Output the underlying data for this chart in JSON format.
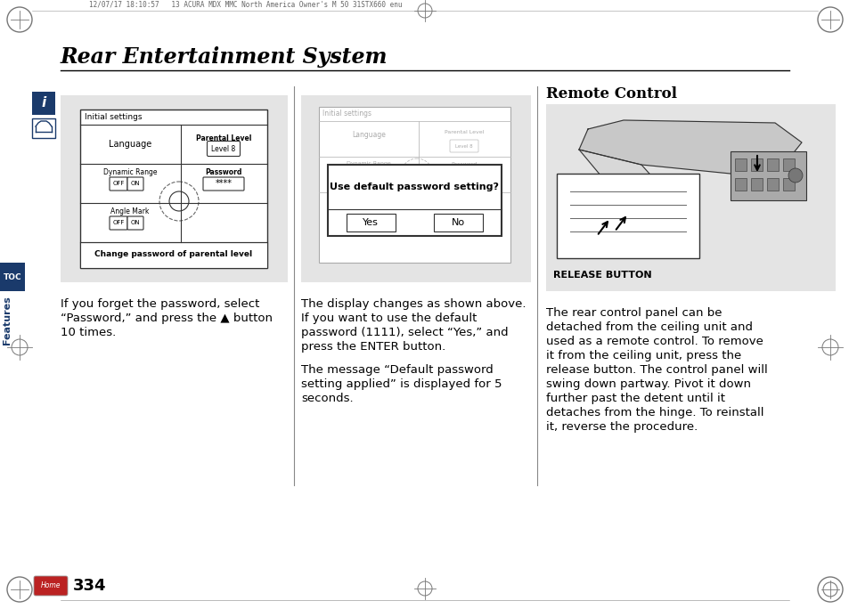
{
  "title": "Rear Entertainment System",
  "page_number": "334",
  "header_text": "12/07/17 18:10:57   13 ACURA MDX MMC North America Owner's M 50 31STX660 enu",
  "bg_color": "#ffffff",
  "gray_panel": "#e4e4e4",
  "sidebar_blue": "#1a3a6b",
  "left_text_line1": "If you forget the password, select",
  "left_text_line2": "“Password,” and press the ▲ button",
  "left_text_line3": "10 times.",
  "mid_text_line1": "The display changes as shown above.",
  "mid_text_line2": "If you want to use the default",
  "mid_text_line3": "password (1111), select “Yes,” and",
  "mid_text_line4": "press the ENTER button.",
  "mid_text_line5": "The message “Default password",
  "mid_text_line6": "setting applied” is displayed for 5",
  "mid_text_line7": "seconds.",
  "remote_title": "Remote Control",
  "release_label": "RELEASE BUTTON",
  "right_text_line1": "The rear control panel can be",
  "right_text_line2": "detached from the ceiling unit and",
  "right_text_line3": "used as a remote control. To remove",
  "right_text_line4": "it from the ceiling unit, press the",
  "right_text_line5": "release button. The control panel will",
  "right_text_line6": "swing down partway. Pivot it down",
  "right_text_line7": "further past the detent until it",
  "right_text_line8": "detaches from the hinge. To reinstall",
  "right_text_line9": "it, reverse the procedure."
}
